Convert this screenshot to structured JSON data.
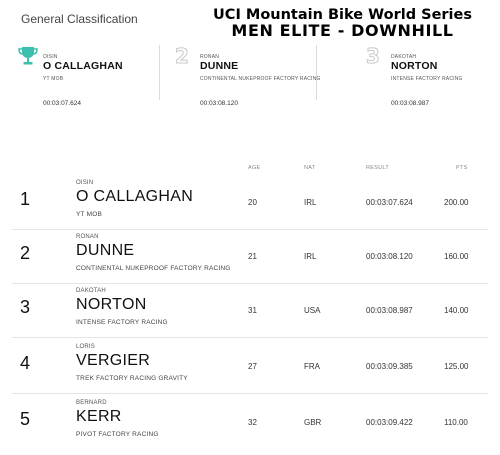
{
  "header": {
    "section_title": "General Classification",
    "banner_line1": "UCI Mountain Bike World Series",
    "banner_line2": "MEN ELITE - DOWNHILL"
  },
  "colors": {
    "trophy": "#3dbfae",
    "rank_badge": "#c9c9c9"
  },
  "podium": [
    {
      "rank": "1",
      "icon": "trophy-icon",
      "first_name": "OISIN",
      "last_name": "O CALLAGHAN",
      "team": "YT MOB",
      "time": "00:03:07.624"
    },
    {
      "rank": "2",
      "first_name": "RONAN",
      "last_name": "DUNNE",
      "team": "CONTINENTAL NUKEPROOF FACTORY RACING",
      "time": "00:03:08.120"
    },
    {
      "rank": "3",
      "first_name": "DAKOTAH",
      "last_name": "NORTON",
      "team": "INTENSE FACTORY RACING",
      "time": "00:03:08.987"
    }
  ],
  "columns": {
    "age": "AGE",
    "nat": "NAT",
    "result": "RESULT",
    "pts": "PTS"
  },
  "rows": [
    {
      "rank": "1",
      "first_name": "OISIN",
      "last_name": "O CALLAGHAN",
      "team": "YT MOB",
      "age": "20",
      "nat": "IRL",
      "result": "00:03:07.624",
      "pts": "200.00"
    },
    {
      "rank": "2",
      "first_name": "RONAN",
      "last_name": "DUNNE",
      "team": "CONTINENTAL NUKEPROOF FACTORY RACING",
      "age": "21",
      "nat": "IRL",
      "result": "00:03:08.120",
      "pts": "160.00"
    },
    {
      "rank": "3",
      "first_name": "DAKOTAH",
      "last_name": "NORTON",
      "team": "INTENSE FACTORY RACING",
      "age": "31",
      "nat": "USA",
      "result": "00:03:08.987",
      "pts": "140.00"
    },
    {
      "rank": "4",
      "first_name": "LORIS",
      "last_name": "VERGIER",
      "team": "TREK FACTORY RACING GRAVITY",
      "age": "27",
      "nat": "FRA",
      "result": "00:03:09.385",
      "pts": "125.00"
    },
    {
      "rank": "5",
      "first_name": "BERNARD",
      "last_name": "KERR",
      "team": "PIVOT FACTORY RACING",
      "age": "32",
      "nat": "GBR",
      "result": "00:03:09.422",
      "pts": "110.00"
    }
  ]
}
